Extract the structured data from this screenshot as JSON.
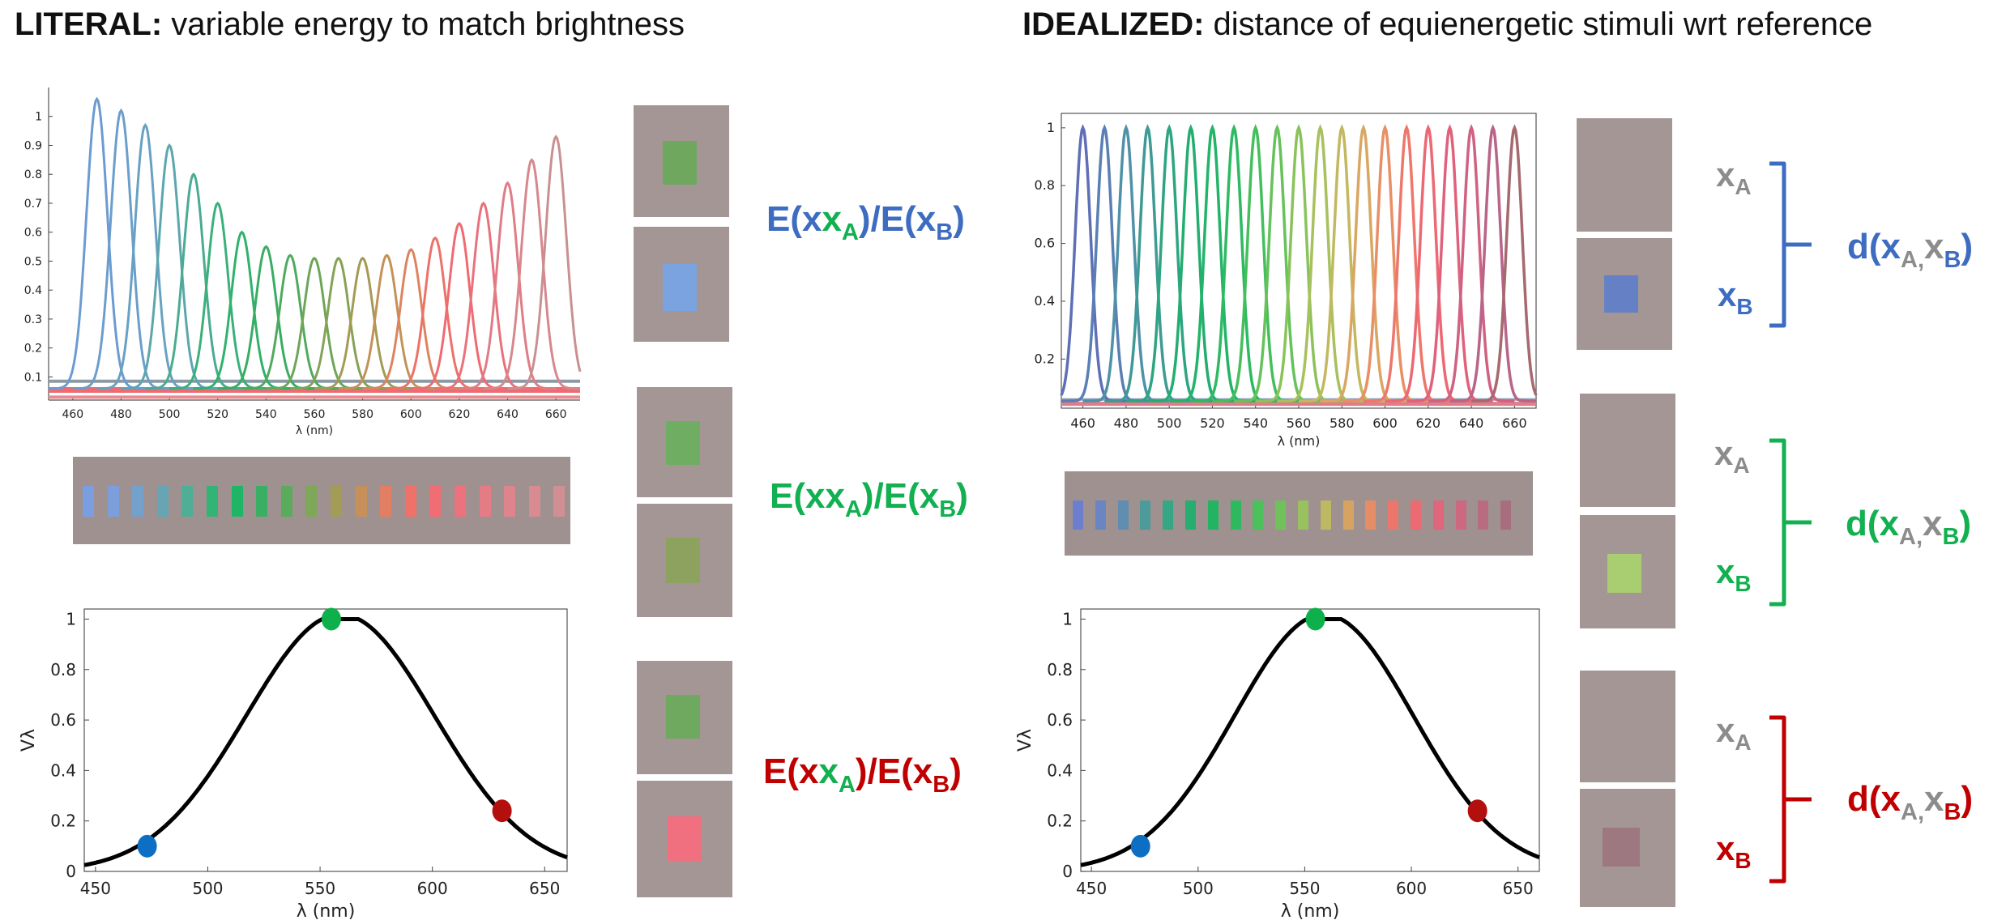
{
  "titles": {
    "literal_bold": "LITERAL:",
    "literal_rest": " variable energy to match brightness",
    "idealized_bold": "IDEALIZED:",
    "idealized_rest": " distance of equienergetic stimuli wrt reference"
  },
  "colors": {
    "blue": "#3d6cc1",
    "green": "#12b050",
    "red": "#c00000",
    "grey": "#8c8c8c",
    "patch_bg": "#a39694",
    "dot_blue": "#0c6fc3",
    "dot_green": "#0db04b",
    "dot_red": "#b30f0f"
  },
  "ratio_text": {
    "e": "E(x",
    "a": "A",
    "mid": ")/E(x",
    "b": "B",
    "end": ")"
  },
  "distance_text": {
    "d": "d(x",
    "a": "A",
    "comma": ",",
    "x": "x",
    "b": "B",
    "end": ")",
    "xa_x": "x",
    "xa_sub": "A",
    "xb_x": "x",
    "xb_sub": "B"
  },
  "chart_data": [
    {
      "id": "literal-spectra",
      "type": "line",
      "title": "",
      "xlabel": "λ (nm)",
      "ylabel": "",
      "xlim": [
        450,
        670
      ],
      "ylim": [
        0.02,
        1.1
      ],
      "xticks": [
        460,
        480,
        500,
        520,
        540,
        560,
        580,
        600,
        620,
        640,
        660
      ],
      "yticks": [
        0.1,
        0.2,
        0.3,
        0.4,
        0.5,
        0.6,
        0.7,
        0.8,
        0.9,
        1
      ],
      "ytick_labels": [
        "0.1",
        "0.2",
        "0.3",
        "0.4",
        "0.5",
        "0.6",
        "0.7",
        "0.8",
        "0.9",
        "1"
      ],
      "peaks_nm": [
        470,
        480,
        490,
        500,
        510,
        520,
        530,
        540,
        550,
        560,
        570,
        580,
        590,
        600,
        610,
        620,
        630,
        640,
        650,
        660
      ],
      "peak_values": [
        1.06,
        1.02,
        0.97,
        0.9,
        0.8,
        0.7,
        0.6,
        0.55,
        0.52,
        0.51,
        0.51,
        0.51,
        0.52,
        0.54,
        0.58,
        0.63,
        0.7,
        0.77,
        0.85,
        0.93
      ],
      "series_colors": [
        "#6c9bd1",
        "#6b9ecb",
        "#68a1c2",
        "#5ca6ad",
        "#4aab91",
        "#3ab07a",
        "#2fb26c",
        "#38ad62",
        "#50aa5d",
        "#6da657",
        "#86a255",
        "#a39b55",
        "#c39258",
        "#dc8460",
        "#ec7268",
        "#f06a72",
        "#e9717c",
        "#df7d86",
        "#d7878d",
        "#c99091"
      ]
    },
    {
      "id": "idealized-spectra",
      "type": "line",
      "title": "",
      "xlabel": "λ (nm)",
      "ylabel": "",
      "xlim": [
        450,
        670
      ],
      "ylim": [
        0.03,
        1.05
      ],
      "xticks": [
        460,
        480,
        500,
        520,
        540,
        560,
        580,
        600,
        620,
        640,
        660
      ],
      "yticks": [
        0.2,
        0.4,
        0.6,
        0.8,
        1
      ],
      "ytick_labels": [
        "0.2",
        "0.4",
        "0.6",
        "0.8",
        "1"
      ],
      "peaks_nm": [
        460,
        470,
        480,
        490,
        500,
        510,
        520,
        530,
        540,
        550,
        560,
        570,
        580,
        590,
        600,
        610,
        620,
        630,
        640,
        650,
        660
      ],
      "peak_values": [
        1,
        1,
        1,
        1,
        1,
        1,
        1,
        1,
        1,
        1,
        1,
        1,
        1,
        1,
        1,
        1,
        1,
        1,
        1,
        1,
        1
      ],
      "series_colors": [
        "#5f6fb6",
        "#5a7fb4",
        "#4f91a8",
        "#3f9a95",
        "#2ea581",
        "#24ad70",
        "#22b468",
        "#2dba62",
        "#45bf5d",
        "#66c25a",
        "#8ac35a",
        "#a8c05d",
        "#c3b860",
        "#d9a762",
        "#e88f66",
        "#ee776b",
        "#ec6873",
        "#e0617c",
        "#cf6282",
        "#b86588",
        "#a5696f"
      ]
    },
    {
      "id": "literal-vlambda",
      "type": "line",
      "title": "",
      "xlabel": "λ  (nm)",
      "ylabel": "Vλ",
      "xlim": [
        445,
        660
      ],
      "ylim": [
        0,
        1.04
      ],
      "xticks": [
        450,
        500,
        550,
        600,
        650
      ],
      "yticks": [
        0,
        0.2,
        0.4,
        0.6,
        0.8,
        1
      ],
      "ytick_labels": [
        "0",
        "0.2",
        "0.4",
        "0.6",
        "0.8",
        "1"
      ],
      "markers": [
        {
          "x": 473,
          "y": 0.1,
          "color": "#0c6fc3"
        },
        {
          "x": 555,
          "y": 1.0,
          "color": "#0db04b"
        },
        {
          "x": 631,
          "y": 0.24,
          "color": "#b30f0f"
        }
      ]
    },
    {
      "id": "idealized-vlambda",
      "type": "line",
      "title": "",
      "xlabel": "λ  (nm)",
      "ylabel": "Vλ",
      "xlim": [
        445,
        660
      ],
      "ylim": [
        0,
        1.04
      ],
      "xticks": [
        450,
        500,
        550,
        600,
        650
      ],
      "yticks": [
        0,
        0.2,
        0.4,
        0.6,
        0.8,
        1
      ],
      "ytick_labels": [
        "0",
        "0.2",
        "0.4",
        "0.6",
        "0.8",
        "1"
      ],
      "markers": [
        {
          "x": 473,
          "y": 0.1,
          "color": "#0c6fc3"
        },
        {
          "x": 555,
          "y": 1.0,
          "color": "#0db04b"
        },
        {
          "x": 631,
          "y": 0.24,
          "color": "#b30f0f"
        }
      ]
    }
  ],
  "strips": {
    "literal_colors": [
      "#7a9ee0",
      "#7c9fdc",
      "#74a0cc",
      "#67a4b4",
      "#4fae96",
      "#34b377",
      "#1fb566",
      "#3aaf63",
      "#5aab5c",
      "#7fa759",
      "#a39c57",
      "#c7905b",
      "#e27f62",
      "#f0706a",
      "#f16d74",
      "#ec737d",
      "#e47c86",
      "#de848d",
      "#d98b91",
      "#d18f94"
    ],
    "idealized_colors": [
      "#6d7fcc",
      "#6a86c2",
      "#5f8eb0",
      "#4c9a99",
      "#36a684",
      "#27ad70",
      "#22b363",
      "#2fb95f",
      "#4cc05b",
      "#71c15b",
      "#99c15e",
      "#bdb862",
      "#d6a363",
      "#e58d66",
      "#ec766b",
      "#ec6b73",
      "#df667b",
      "#cc6880",
      "#b96b82",
      "#a86e80"
    ]
  },
  "patches": {
    "literal": [
      "#6fa75f",
      "#7aa3df",
      "#6fad62",
      "#8ca25e",
      "#6fa85f",
      "#f07080"
    ],
    "idealized": [
      "",
      "#6580c4",
      "",
      "#a9cd71",
      "",
      "#9e7880"
    ]
  }
}
